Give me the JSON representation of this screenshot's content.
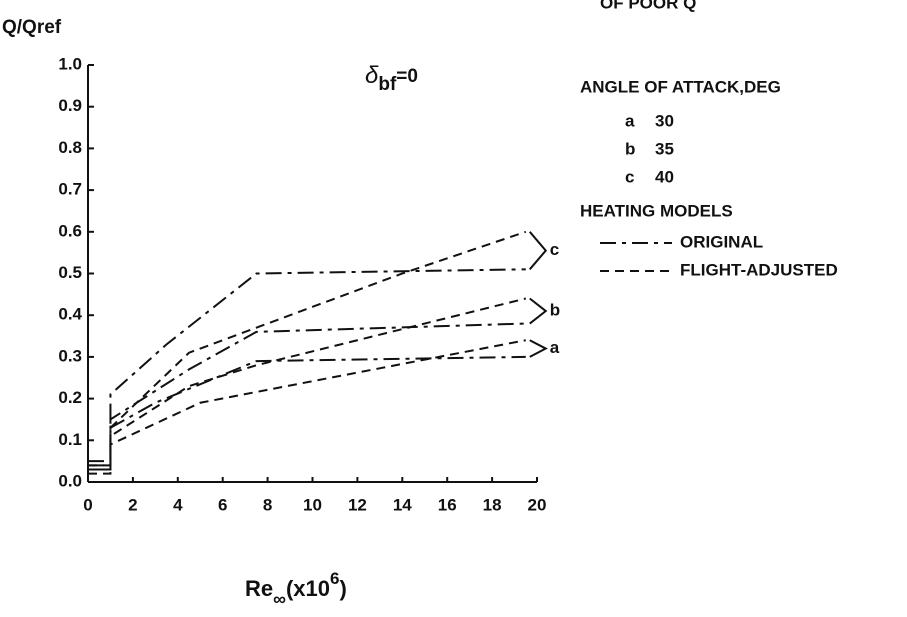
{
  "chart_data": {
    "type": "line",
    "stamp": "OF POOR Q",
    "ylabel": "Q/Qref",
    "xlabel": {
      "main": "Re",
      "sub": "∞",
      "rest": "(x10",
      "sup": "6",
      "close": ")"
    },
    "annotation": {
      "symbol": "δ",
      "sub": "bf",
      "rest": "=0"
    },
    "xlim": [
      0,
      20
    ],
    "xticks": [
      0,
      2,
      4,
      6,
      8,
      10,
      12,
      14,
      16,
      18,
      20
    ],
    "ylim": [
      0,
      1
    ],
    "yticks": [
      {
        "value": 0,
        "label": "0.0"
      },
      0.1,
      0.2,
      0.3,
      0.4,
      0.5,
      0.6,
      0.7,
      0.8,
      0.9,
      {
        "value": 1,
        "label": "1.0"
      }
    ],
    "angle_legend": {
      "title": "ANGLE OF ATTACK,DEG",
      "items": [
        {
          "key": "a",
          "angle": 30
        },
        {
          "key": "b",
          "angle": 35
        },
        {
          "key": "c",
          "angle": 40
        }
      ]
    },
    "model_legend": {
      "title": "HEATING MODELS",
      "items": [
        {
          "label": "ORIGINAL",
          "dash": "long"
        },
        {
          "label": "FLIGHT-ADJUSTED",
          "dash": "short"
        }
      ]
    },
    "series": [
      {
        "name": "c",
        "dash": "long",
        "x": [
          0,
          1,
          1,
          3.5,
          7.5,
          19.5
        ],
        "values": [
          0.05,
          0.05,
          0.21,
          0.33,
          0.5,
          0.51
        ]
      },
      {
        "name": "b",
        "dash": "long",
        "x": [
          0,
          1,
          1,
          4.5,
          7.5,
          19.5
        ],
        "values": [
          0.04,
          0.04,
          0.15,
          0.27,
          0.36,
          0.38
        ]
      },
      {
        "name": "a",
        "dash": "long",
        "x": [
          0,
          1,
          1,
          3,
          7.5,
          19.5
        ],
        "values": [
          0.03,
          0.03,
          0.13,
          0.19,
          0.29,
          0.3
        ]
      },
      {
        "name": "c",
        "dash": "short",
        "x": [
          0,
          1,
          1,
          4.5,
          7.5,
          14,
          19.5
        ],
        "values": [
          0.04,
          0.04,
          0.13,
          0.31,
          0.37,
          0.5,
          0.6
        ]
      },
      {
        "name": "b",
        "dash": "short",
        "x": [
          0,
          1,
          1,
          4.5,
          7.5,
          19.5
        ],
        "values": [
          0.03,
          0.03,
          0.11,
          0.23,
          0.28,
          0.44
        ]
      },
      {
        "name": "a",
        "dash": "short",
        "x": [
          0,
          1,
          1,
          5,
          19.5
        ],
        "values": [
          0.02,
          0.02,
          0.09,
          0.19,
          0.34
        ]
      }
    ]
  }
}
